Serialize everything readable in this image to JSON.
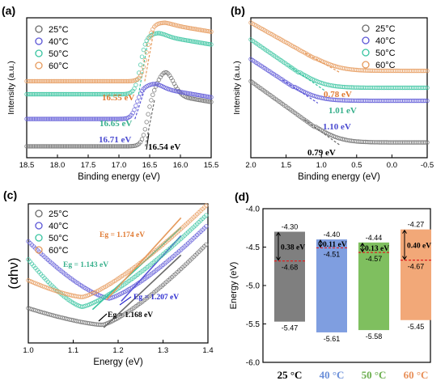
{
  "chart_data": [
    {
      "panel": "(a)",
      "type": "scatter",
      "xlabel": "Binding energy (eV)",
      "ylabel": "Intensity (a.u.)",
      "xlim": [
        18.5,
        15.5
      ],
      "xticks": [
        "18.5",
        "18.0",
        "17.5",
        "17.0",
        "16.5",
        "16.0",
        "15.5"
      ],
      "xtick_values": [
        18.5,
        18.0,
        17.5,
        17.0,
        16.5,
        16.0,
        15.5
      ],
      "legend_position": "top-left",
      "series": [
        {
          "name": "25°C",
          "color": "#6b6b6b",
          "base": 0.05,
          "step": 16.54,
          "peak": 0.62,
          "plateau": 0.45
        },
        {
          "name": "40°C",
          "color": "#5a55d6",
          "base": 0.26,
          "step": 16.71,
          "peak": 0.53,
          "plateau": 0.5
        },
        {
          "name": "50°C",
          "color": "#38c4a0",
          "base": 0.45,
          "step": 16.65,
          "peak": 0.92,
          "plateau": 0.9
        },
        {
          "name": "60°C",
          "color": "#e69a5c",
          "base": 0.55,
          "step": 16.55,
          "peak": 1.0,
          "plateau": 0.99
        }
      ],
      "annotations": [
        {
          "text": "16.55 eV",
          "color": "#e07a32"
        },
        {
          "text": "16.65 eV",
          "color": "#38b08c"
        },
        {
          "text": "16.71 eV",
          "color": "#4a4ad0"
        },
        {
          "text": "16.54 eV",
          "color": "#000000"
        }
      ]
    },
    {
      "panel": "(b)",
      "type": "scatter",
      "xlabel": "Binding energy (eV)",
      "ylabel": "Intensity (a.u.)",
      "xlim": [
        2.0,
        -0.5
      ],
      "xticks": [
        "2.0",
        "1.5",
        "1.0",
        "0.5",
        "0.0",
        "-0.5"
      ],
      "xtick_values": [
        2.0,
        1.5,
        1.0,
        0.5,
        0.0,
        -0.5
      ],
      "legend_position": "top-right",
      "series": [
        {
          "name": "25°C",
          "color": "#6b6b6b",
          "onset": 0.79,
          "start": 0.55,
          "base": 0.08
        },
        {
          "name": "40°C",
          "color": "#5a55d6",
          "onset": 1.1,
          "start": 0.72,
          "base": 0.4
        },
        {
          "name": "50°C",
          "color": "#38c4a0",
          "onset": 1.01,
          "start": 0.87,
          "base": 0.5
        },
        {
          "name": "60°C",
          "color": "#e69a5c",
          "onset": 0.78,
          "start": 1.0,
          "base": 0.63
        }
      ],
      "annotations": [
        {
          "text": "0.78 eV",
          "color": "#e07a32"
        },
        {
          "text": "1.01 eV",
          "color": "#38b08c"
        },
        {
          "text": "1.10 eV",
          "color": "#4a4ad0"
        },
        {
          "text": "0.79 eV",
          "color": "#000000"
        }
      ]
    },
    {
      "panel": "(c)",
      "type": "scatter",
      "xlabel": "Energy (eV)",
      "ylabel": "(αhν)",
      "xlim": [
        1.0,
        1.4
      ],
      "xticks": [
        "1.0",
        "1.1",
        "1.2",
        "1.3",
        "1.4"
      ],
      "xtick_values": [
        1.0,
        1.1,
        1.2,
        1.3,
        1.4
      ],
      "legend_position": "top-left",
      "series": [
        {
          "name": "25°C",
          "color": "#6b6b6b",
          "eg": 1.168
        },
        {
          "name": "40°C",
          "color": "#5a55d6",
          "eg": 1.207
        },
        {
          "name": "50°C",
          "color": "#38c4a0",
          "eg": 1.143
        },
        {
          "name": "60°C",
          "color": "#e69a5c",
          "eg": 1.174
        }
      ],
      "annotations": [
        {
          "text": "Eg = 1.174 eV",
          "color": "#e07a32"
        },
        {
          "text": "Eg = 1.143 eV",
          "color": "#38b08c"
        },
        {
          "text": "Eg = 1.207 eV",
          "color": "#2a2ad0"
        },
        {
          "text": "Eg = 1.168 eV",
          "color": "#000000"
        }
      ]
    },
    {
      "panel": "(d)",
      "type": "bar",
      "ylabel": "Energy (eV)",
      "ylim": [
        -6.0,
        -4.0
      ],
      "yticks": [
        "-4.0",
        "-4.5",
        "-5.0",
        "-5.5",
        "-6.0"
      ],
      "ytick_values": [
        -4.0,
        -4.5,
        -5.0,
        -5.5,
        -6.0
      ],
      "bars": [
        {
          "label": "25 °C",
          "color": "#7f7f7f",
          "label_color": "#000000",
          "top": -4.3,
          "bottom": -5.47,
          "fermi": -4.68,
          "top_text": "-4.30",
          "bottom_text": "-5.47",
          "fermi_text": "-4.68",
          "gap_text": "0.38 eV"
        },
        {
          "label": "40 °C",
          "color": "#7f9ee0",
          "label_color": "#6a8ed8",
          "top": -4.4,
          "bottom": -5.61,
          "fermi": -4.51,
          "top_text": "-4.40",
          "bottom_text": "-5.61",
          "fermi_text": "-4.51",
          "gap_text": "0.11 eV"
        },
        {
          "label": "50 °C",
          "color": "#7fbf5f",
          "label_color": "#6aae4c",
          "top": -4.44,
          "bottom": -5.58,
          "fermi": -4.57,
          "top_text": "-4.44",
          "bottom_text": "-5.58",
          "fermi_text": "-4.57",
          "gap_text": "0.13 eV"
        },
        {
          "label": "60 °C",
          "color": "#f2a878",
          "label_color": "#e88f58",
          "top": -4.27,
          "bottom": -5.45,
          "fermi": -4.67,
          "top_text": "-4.27",
          "bottom_text": "-5.45",
          "fermi_text": "-4.67",
          "gap_text": "0.40 eV"
        }
      ]
    }
  ]
}
